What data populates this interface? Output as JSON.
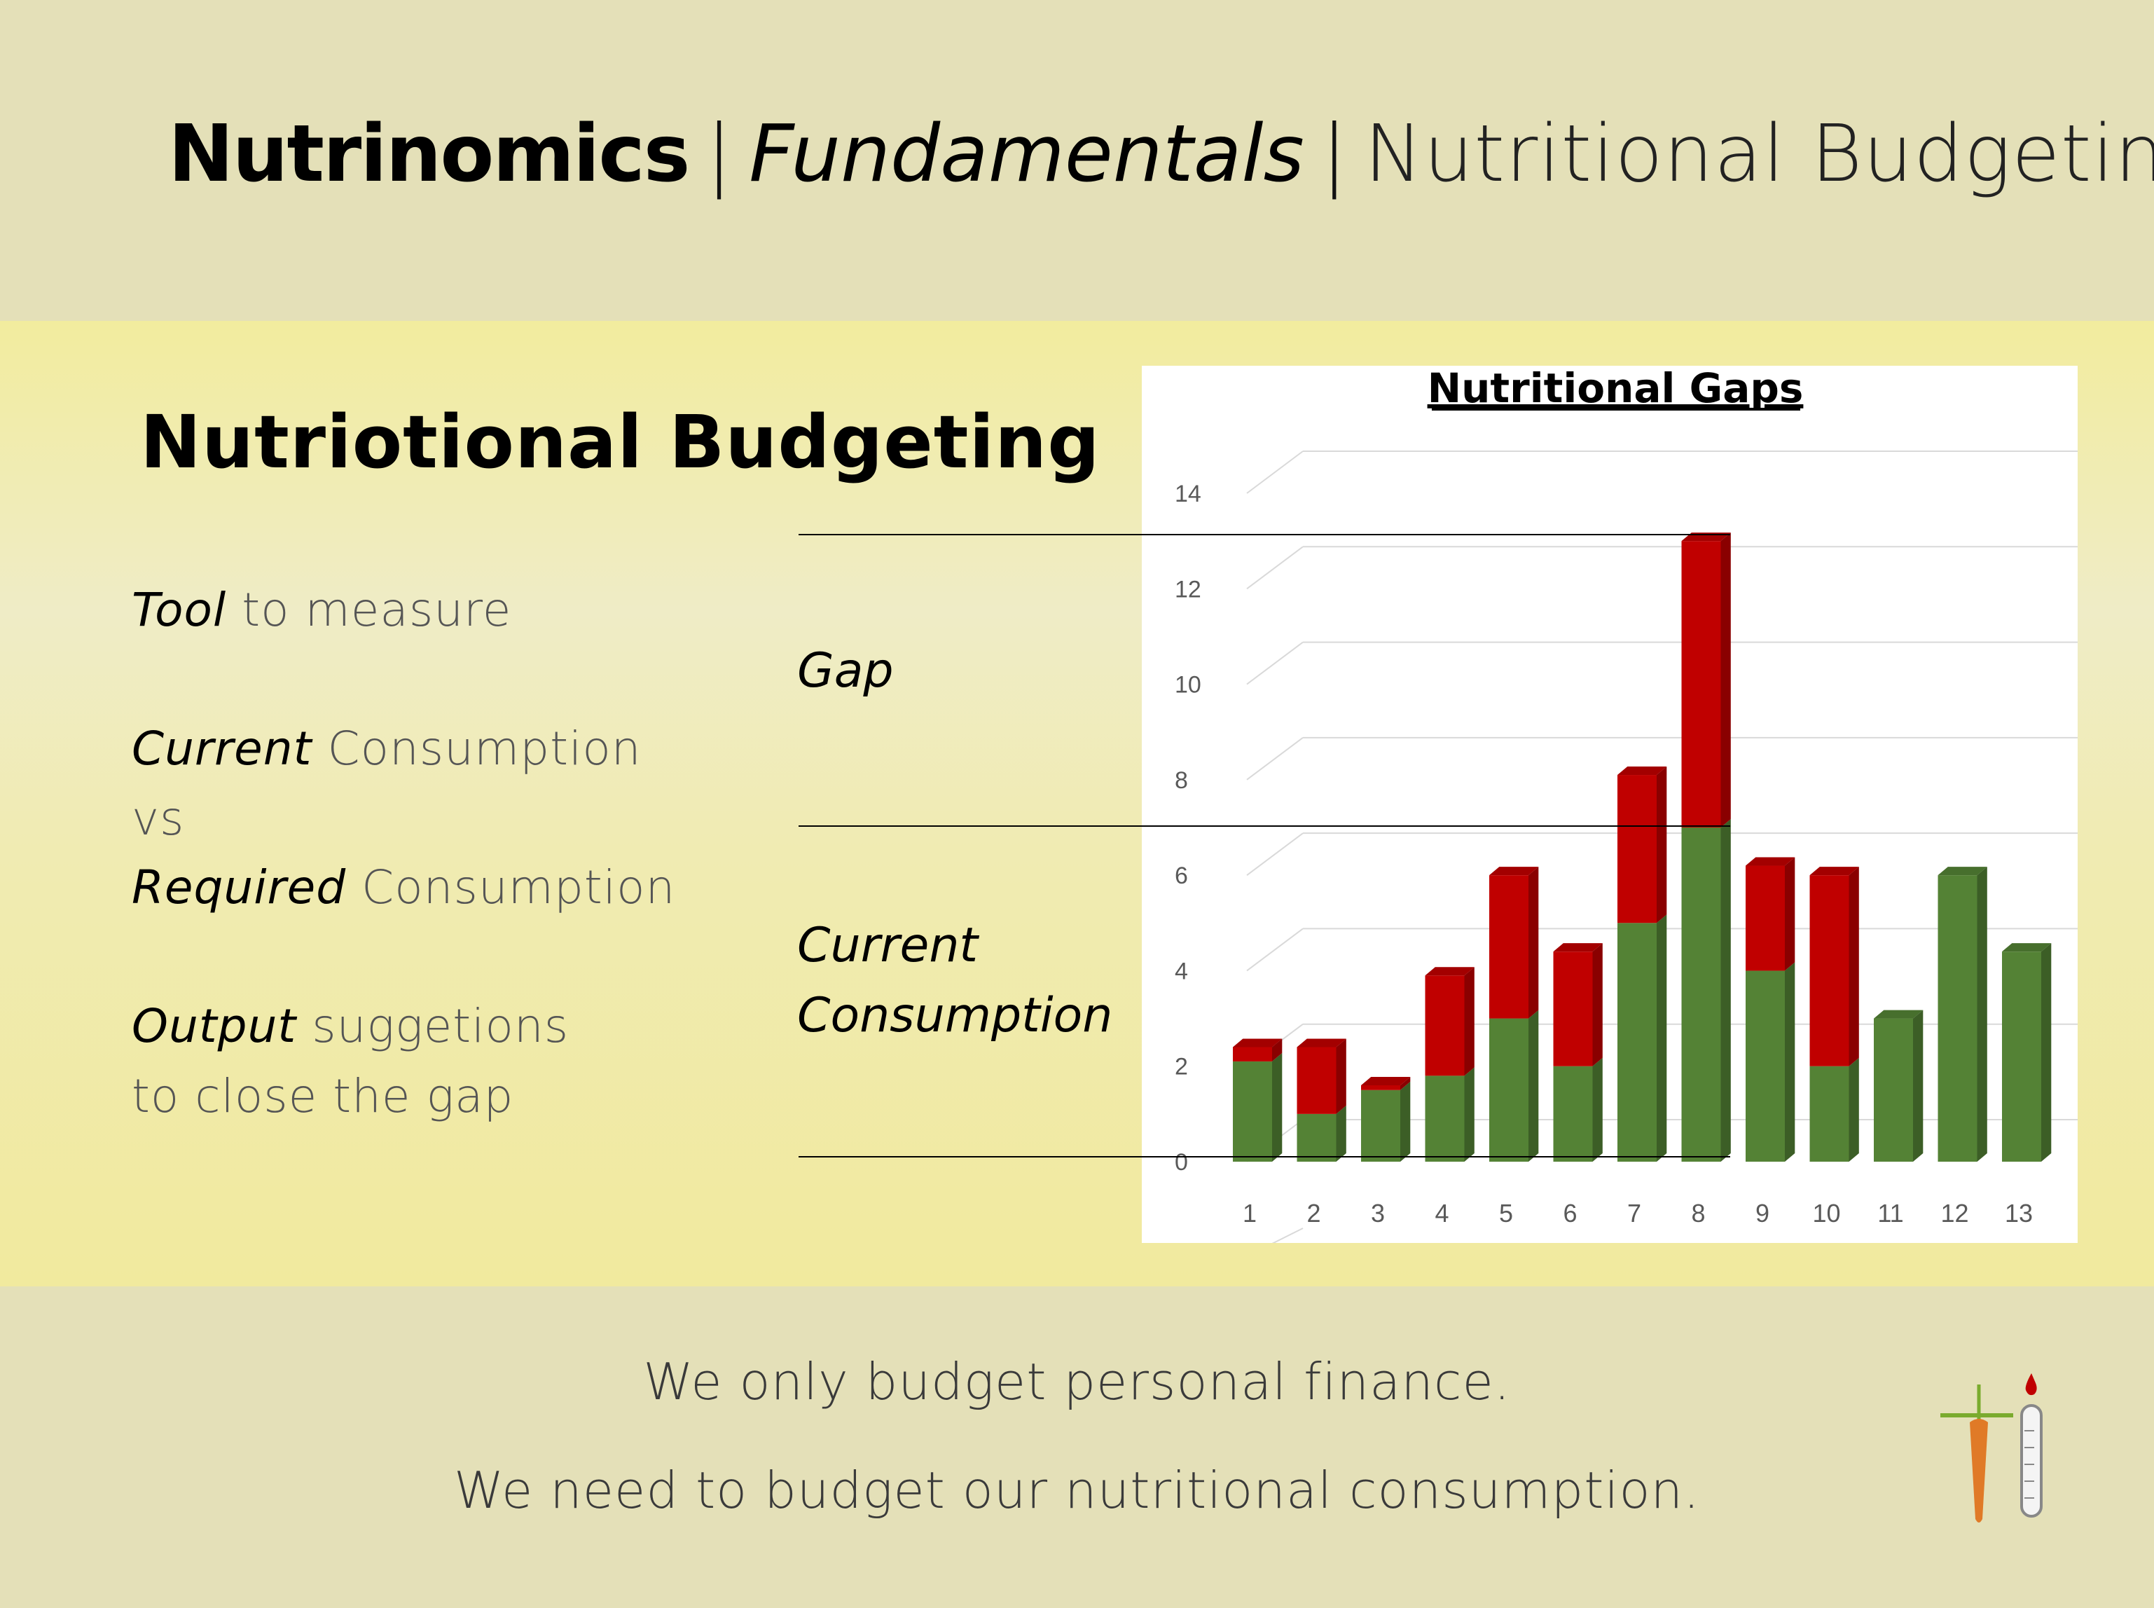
{
  "header": {
    "brand": "Nutrinomics",
    "separator": "|",
    "subtitle": "Fundamentals",
    "topic": "Nutritional Budgeting"
  },
  "main": {
    "section_title": "Nutriotional Budgeting",
    "points": [
      {
        "emphasis": "Tool",
        "rest": " to measure"
      },
      {
        "emphasis": "Current",
        "rest": " Consumption"
      },
      {
        "emphasis": "",
        "rest": "vs"
      },
      {
        "emphasis": "Required",
        "rest": " Consumption"
      },
      {
        "emphasis": "Output",
        "rest": " suggetions"
      },
      {
        "emphasis": "",
        "rest": "to close the gap"
      }
    ],
    "gap_label": "Gap",
    "current_label_line1": "Current",
    "current_label_line2": "Consumption"
  },
  "footer": {
    "line1": "We only budget personal finance.",
    "line2": "We need to budget our nutritional consumption."
  },
  "colors": {
    "current": "#548235",
    "gap": "#c00000",
    "background": "#e4e0b8",
    "band": "#f1ea9e"
  },
  "chart_data": {
    "type": "bar",
    "stacked": true,
    "title": "Nutritional Gaps",
    "xlabel": "",
    "ylabel": "",
    "categories": [
      "1",
      "2",
      "3",
      "4",
      "5",
      "6",
      "7",
      "8",
      "9",
      "10",
      "11",
      "12",
      "13"
    ],
    "series": [
      {
        "color": "#548235",
        "values": [
          2.1,
          1.0,
          1.5,
          1.8,
          3.0,
          2.0,
          5.0,
          7.0,
          4.0,
          2.0,
          3.0,
          6.0,
          4.4
        ]
      },
      {
        "color": "#c00000",
        "values": [
          0.3,
          1.4,
          0.1,
          2.1,
          3.0,
          2.4,
          3.1,
          6.0,
          2.2,
          4.0,
          0.0,
          0.0,
          0.0
        ]
      }
    ],
    "ylim": [
      0,
      14
    ],
    "yticks": [
      0,
      2,
      4,
      6,
      8,
      10,
      12,
      14
    ],
    "grid": true,
    "legend": "none"
  }
}
